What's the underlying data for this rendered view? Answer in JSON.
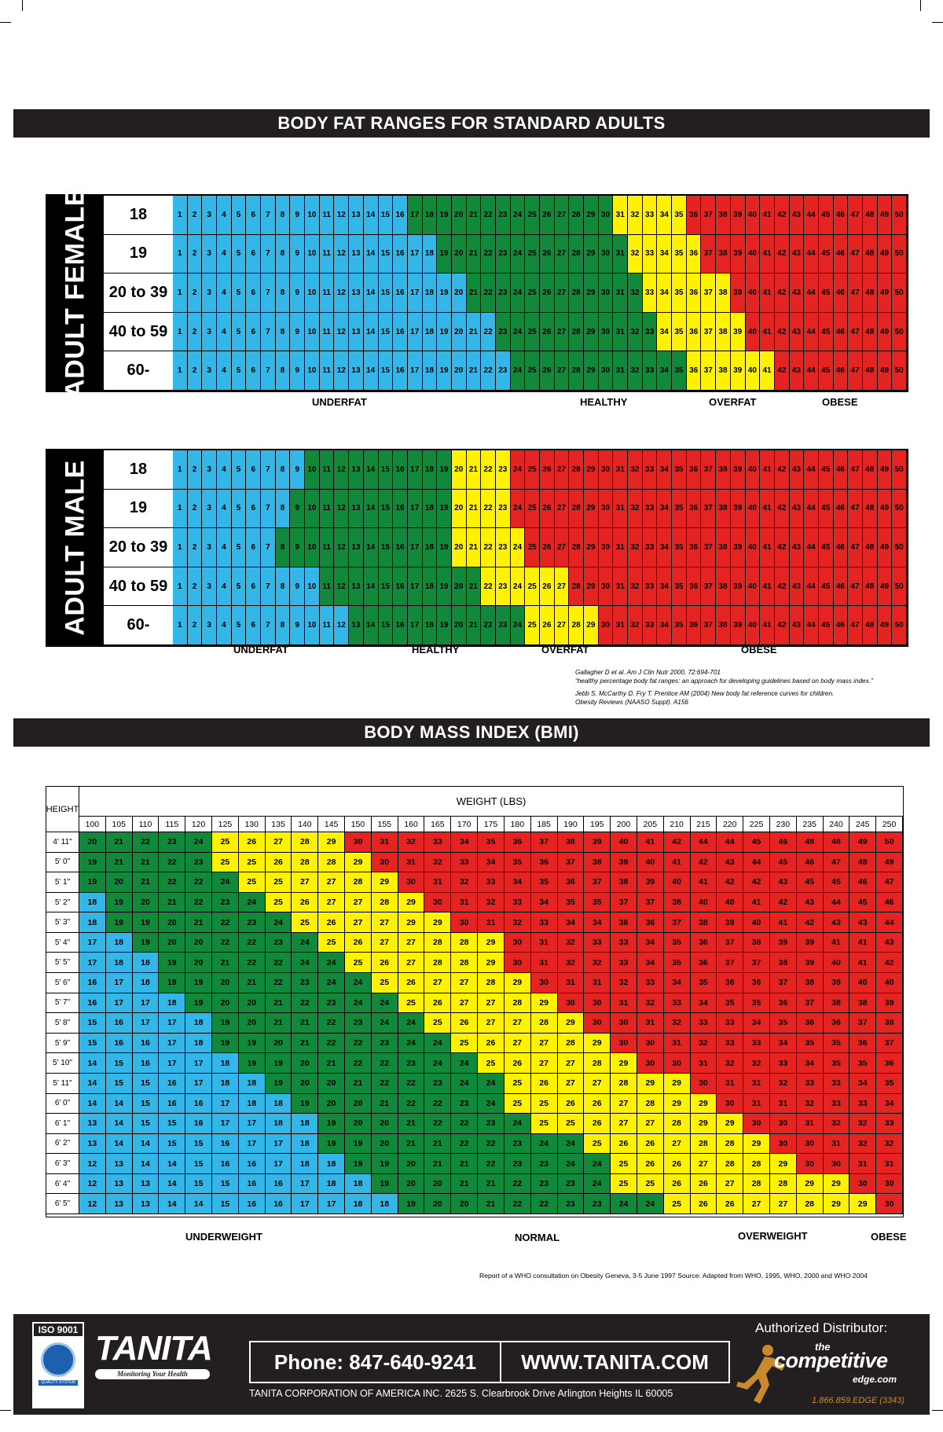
{
  "colors": {
    "underfat": "#33b6e8",
    "healthy": "#10893a",
    "overfat": "#fff200",
    "obese": "#e52421",
    "dark": "#231f20"
  },
  "body_fat": {
    "title": "BODY FAT RANGES FOR STANDARD ADULTS",
    "female": {
      "label": "ADULT FEMALE",
      "rows": [
        {
          "age": "18",
          "u": 16,
          "h": 30,
          "o": 35
        },
        {
          "age": "19",
          "u": 18,
          "h": 31,
          "o": 36
        },
        {
          "age": "20 to 39",
          "u": 20,
          "h": 32,
          "o": 38
        },
        {
          "age": "40 to 59",
          "u": 22,
          "h": 33,
          "o": 39
        },
        {
          "age": "60-",
          "u": 23,
          "h": 35,
          "o": 41
        }
      ],
      "legend": {
        "underfat": "UNDERFAT",
        "healthy": "HEALTHY",
        "overfat": "OVERFAT",
        "obese": "OBESE"
      }
    },
    "male": {
      "label": "ADULT MALE",
      "rows": [
        {
          "age": "18",
          "u": 9,
          "h": 19,
          "o": 23
        },
        {
          "age": "19",
          "u": 8,
          "h": 19,
          "o": 23
        },
        {
          "age": "20 to 39",
          "u": 7,
          "h": 19,
          "o": 24
        },
        {
          "age": "40 to 59",
          "u": 10,
          "h": 21,
          "o": 27
        },
        {
          "age": "60-",
          "u": 12,
          "h": 24,
          "o": 29
        }
      ],
      "legend": {
        "underfat": "UNDERFAT",
        "healthy": "HEALTHY",
        "overfat": "OVERFAT",
        "obese": "OBESE"
      }
    },
    "citation": [
      "Gallagher D et al. Am J Clin Nutr 2000, 72:694-701",
      "“healthy percentage body fat ranges: an approach for developing guidelines based on body mass index.”",
      "Jebb S. McCarthy D. Fry T. Prentice AM (2004)  New body fat reference curves for children.",
      "Obesity Reviews (NAASO Suppl). A156"
    ]
  },
  "bmi": {
    "title": "BODY MASS INDEX (BMI)",
    "height_label": "HEIGHT",
    "weight_label": "WEIGHT (LBS)",
    "weights": [
      "100",
      "105",
      "110",
      "115",
      "120",
      "125",
      "130",
      "135",
      "140",
      "145",
      "150",
      "155",
      "160",
      "165",
      "170",
      "175",
      "180",
      "185",
      "190",
      "195",
      "200",
      "205",
      "210",
      "215",
      "220",
      "225",
      "230",
      "235",
      "240",
      "245",
      "250"
    ],
    "rows": [
      {
        "h": "4' 11\"",
        "v": [
          20,
          21,
          22,
          23,
          24,
          25,
          26,
          27,
          28,
          29,
          30,
          31,
          32,
          33,
          34,
          35,
          36,
          37,
          38,
          39,
          40,
          41,
          42,
          44,
          44,
          45,
          46,
          48,
          48,
          49,
          50
        ]
      },
      {
        "h": "5' 0\"",
        "v": [
          19,
          21,
          21,
          22,
          23,
          25,
          25,
          26,
          28,
          28,
          29,
          30,
          31,
          32,
          33,
          34,
          35,
          36,
          37,
          38,
          39,
          40,
          41,
          42,
          43,
          44,
          45,
          46,
          47,
          48,
          49
        ]
      },
      {
        "h": "5' 1\"",
        "v": [
          19,
          20,
          21,
          22,
          22,
          24,
          25,
          25,
          27,
          27,
          28,
          29,
          30,
          31,
          32,
          33,
          34,
          35,
          36,
          37,
          38,
          39,
          40,
          41,
          42,
          42,
          43,
          45,
          45,
          46,
          47
        ]
      },
      {
        "h": "5' 2\"",
        "v": [
          18,
          19,
          20,
          21,
          22,
          23,
          24,
          25,
          26,
          27,
          27,
          28,
          29,
          30,
          31,
          32,
          33,
          34,
          35,
          35,
          37,
          37,
          38,
          40,
          40,
          41,
          42,
          43,
          44,
          45,
          46
        ]
      },
      {
        "h": "5' 3\"",
        "v": [
          18,
          19,
          19,
          20,
          21,
          22,
          23,
          24,
          25,
          26,
          27,
          27,
          29,
          29,
          30,
          31,
          32,
          33,
          34,
          34,
          36,
          36,
          37,
          38,
          39,
          40,
          41,
          42,
          43,
          43,
          44
        ]
      },
      {
        "h": "5' 4\"",
        "v": [
          17,
          18,
          19,
          20,
          20,
          22,
          22,
          23,
          24,
          25,
          26,
          27,
          27,
          28,
          28,
          29,
          30,
          31,
          32,
          33,
          33,
          34,
          35,
          36,
          37,
          38,
          39,
          39,
          41,
          41,
          43
        ]
      },
      {
        "h": "5' 5\"",
        "v": [
          17,
          18,
          18,
          19,
          20,
          21,
          22,
          22,
          24,
          24,
          25,
          26,
          27,
          28,
          28,
          29,
          30,
          31,
          32,
          32,
          33,
          34,
          35,
          36,
          37,
          37,
          38,
          39,
          40,
          41,
          42
        ]
      },
      {
        "h": "5' 6\"",
        "v": [
          16,
          17,
          18,
          19,
          19,
          20,
          21,
          22,
          23,
          24,
          24,
          25,
          26,
          27,
          27,
          28,
          29,
          30,
          31,
          31,
          32,
          33,
          34,
          35,
          36,
          36,
          37,
          38,
          39,
          40,
          40
        ]
      },
      {
        "h": "5' 7\"",
        "v": [
          16,
          17,
          17,
          18,
          19,
          20,
          20,
          21,
          22,
          23,
          24,
          24,
          25,
          26,
          27,
          27,
          28,
          29,
          30,
          30,
          31,
          32,
          33,
          34,
          35,
          35,
          36,
          37,
          38,
          38,
          39
        ]
      },
      {
        "h": "5' 8\"",
        "v": [
          15,
          16,
          17,
          17,
          18,
          19,
          20,
          21,
          21,
          22,
          23,
          24,
          24,
          25,
          26,
          27,
          27,
          28,
          29,
          30,
          30,
          31,
          32,
          33,
          33,
          34,
          35,
          36,
          36,
          37,
          38
        ]
      },
      {
        "h": "5' 9\"",
        "v": [
          15,
          16,
          16,
          17,
          18,
          19,
          19,
          20,
          21,
          22,
          22,
          23,
          24,
          24,
          25,
          26,
          27,
          27,
          28,
          29,
          30,
          30,
          31,
          32,
          33,
          33,
          34,
          35,
          35,
          36,
          37
        ]
      },
      {
        "h": "5' 10\"",
        "v": [
          14,
          15,
          16,
          17,
          17,
          18,
          19,
          19,
          20,
          21,
          22,
          22,
          23,
          24,
          24,
          25,
          26,
          27,
          27,
          28,
          29,
          30,
          30,
          31,
          32,
          32,
          33,
          34,
          35,
          35,
          36
        ]
      },
      {
        "h": "5' 11\"",
        "v": [
          14,
          15,
          15,
          16,
          17,
          18,
          18,
          19,
          20,
          20,
          21,
          22,
          22,
          23,
          24,
          24,
          25,
          26,
          27,
          27,
          28,
          29,
          29,
          30,
          31,
          31,
          32,
          33,
          33,
          34,
          35
        ]
      },
      {
        "h": "6' 0\"",
        "v": [
          14,
          14,
          15,
          16,
          16,
          17,
          18,
          18,
          19,
          20,
          20,
          21,
          22,
          22,
          23,
          24,
          25,
          25,
          26,
          26,
          27,
          28,
          29,
          29,
          30,
          31,
          31,
          32,
          33,
          33,
          34
        ]
      },
      {
        "h": "6' 1\"",
        "v": [
          13,
          14,
          15,
          15,
          16,
          17,
          17,
          18,
          18,
          19,
          20,
          20,
          21,
          22,
          22,
          23,
          24,
          25,
          25,
          26,
          27,
          27,
          28,
          29,
          29,
          30,
          30,
          31,
          32,
          32,
          33
        ]
      },
      {
        "h": "6' 2\"",
        "v": [
          13,
          14,
          14,
          15,
          15,
          16,
          17,
          17,
          18,
          19,
          19,
          20,
          21,
          21,
          22,
          22,
          23,
          24,
          24,
          25,
          26,
          26,
          27,
          28,
          28,
          29,
          30,
          30,
          31,
          32,
          32
        ]
      },
      {
        "h": "6' 3\"",
        "v": [
          12,
          13,
          14,
          14,
          15,
          16,
          16,
          17,
          18,
          18,
          19,
          19,
          20,
          21,
          21,
          22,
          23,
          23,
          24,
          24,
          25,
          26,
          26,
          27,
          28,
          28,
          29,
          30,
          30,
          31,
          31
        ]
      },
      {
        "h": "6' 4\"",
        "v": [
          12,
          13,
          13,
          14,
          15,
          15,
          16,
          16,
          17,
          18,
          18,
          19,
          20,
          20,
          21,
          21,
          22,
          23,
          23,
          24,
          25,
          25,
          26,
          26,
          27,
          28,
          28,
          29,
          29,
          30,
          30
        ]
      },
      {
        "h": "6' 5\"",
        "v": [
          12,
          13,
          13,
          14,
          14,
          15,
          16,
          16,
          17,
          17,
          18,
          18,
          19,
          20,
          20,
          21,
          22,
          22,
          23,
          23,
          24,
          24,
          25,
          26,
          26,
          27,
          27,
          28,
          29,
          29,
          30
        ]
      }
    ],
    "legend": {
      "underweight": "UNDERWEIGHT",
      "normal": "NORMAL",
      "overweight": "OVERWEIGHT",
      "obese": "OBESE"
    },
    "source": "Report of a WHO consultation on Obesity Geneva, 3-5 June 1997     Source:  Adapted from WHO, 1995, WHO,  2000 and WHO 2004"
  },
  "footer": {
    "iso": "ISO 9001",
    "iso_sub": "QUALITY SYSTEM",
    "brand": "TANITA",
    "brand_tag": "Monitoring Your Health",
    "phone": "Phone: 847-640-9241",
    "website": "WWW.TANITA.COM",
    "address": "TANITA CORPORATION OF AMERICA  INC.  2625 S. Clearbrook Drive  Arlington Heights  IL   60005",
    "distributor_label": "Authorized Distributor:",
    "dist_the": "the",
    "dist_name": "competitive",
    "dist_edge": "edge.com",
    "dist_phone": "1.866.859.EDGE (3343)"
  }
}
